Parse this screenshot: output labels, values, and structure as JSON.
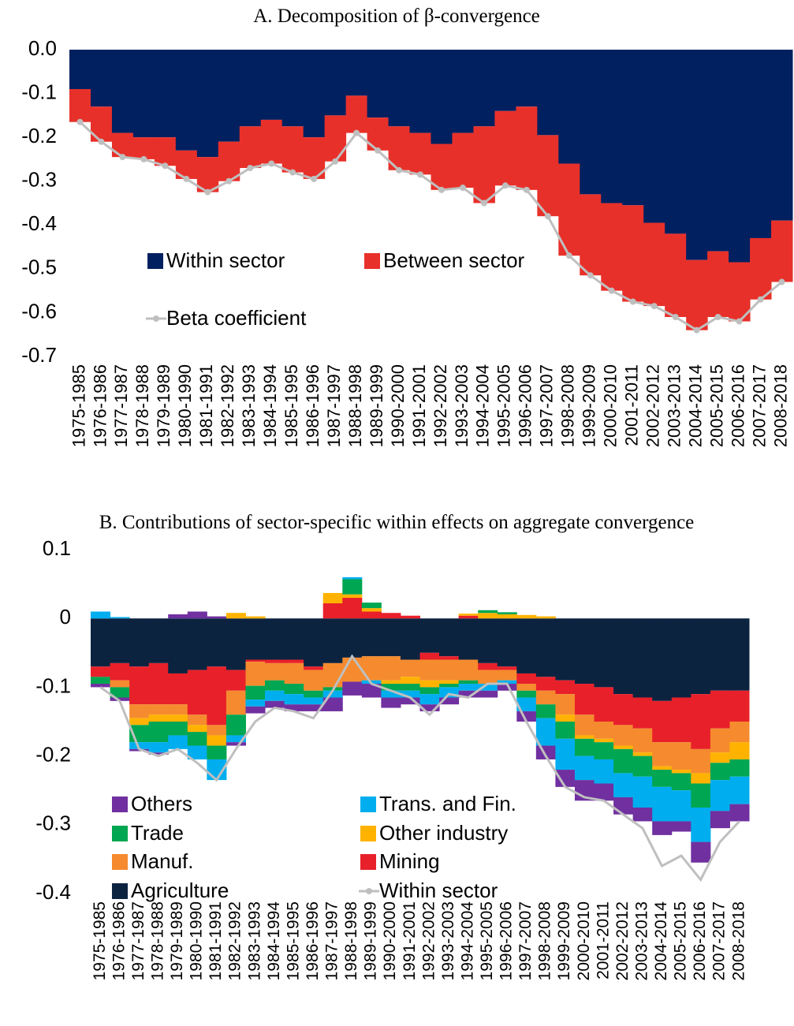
{
  "chart_data": [
    {
      "type": "bar",
      "stacked": true,
      "title": "A. Decomposition of β-convergence",
      "categories": [
        "1975-1985",
        "1976-1986",
        "1977-1987",
        "1978-1988",
        "1979-1989",
        "1980-1990",
        "1981-1991",
        "1982-1992",
        "1983-1993",
        "1984-1994",
        "1985-1995",
        "1986-1996",
        "1987-1997",
        "1988-1998",
        "1989-1999",
        "1990-2000",
        "1991-2001",
        "1992-2002",
        "1993-2003",
        "1994-2004",
        "1995-2005",
        "1996-2006",
        "1997-2007",
        "1998-2008",
        "1999-2009",
        "2000-2010",
        "2001-2011",
        "2002-2012",
        "2003-2013",
        "2004-2014",
        "2005-2015",
        "2006-2016",
        "2007-2017",
        "2008-2018"
      ],
      "series": [
        {
          "name": "Within sector",
          "color": "#002060",
          "values": [
            -0.09,
            -0.13,
            -0.19,
            -0.2,
            -0.2,
            -0.23,
            -0.245,
            -0.21,
            -0.175,
            -0.16,
            -0.175,
            -0.2,
            -0.15,
            -0.105,
            -0.155,
            -0.175,
            -0.19,
            -0.215,
            -0.19,
            -0.175,
            -0.14,
            -0.13,
            -0.195,
            -0.26,
            -0.33,
            -0.35,
            -0.355,
            -0.395,
            -0.42,
            -0.48,
            -0.46,
            -0.485,
            -0.43,
            -0.39
          ]
        },
        {
          "name": "Between sector",
          "color": "#e8302a",
          "values": [
            -0.075,
            -0.08,
            -0.055,
            -0.05,
            -0.065,
            -0.065,
            -0.08,
            -0.09,
            -0.095,
            -0.1,
            -0.105,
            -0.095,
            -0.105,
            -0.085,
            -0.075,
            -0.1,
            -0.095,
            -0.105,
            -0.125,
            -0.175,
            -0.17,
            -0.19,
            -0.185,
            -0.21,
            -0.185,
            -0.2,
            -0.22,
            -0.19,
            -0.19,
            -0.16,
            -0.15,
            -0.135,
            -0.14,
            -0.14
          ]
        },
        {
          "name": "Beta coefficient",
          "type": "line",
          "color": "#bfbfbf",
          "values": [
            -0.165,
            -0.21,
            -0.245,
            -0.25,
            -0.265,
            -0.295,
            -0.325,
            -0.3,
            -0.27,
            -0.26,
            -0.28,
            -0.295,
            -0.255,
            -0.19,
            -0.23,
            -0.275,
            -0.285,
            -0.32,
            -0.315,
            -0.35,
            -0.31,
            -0.32,
            -0.38,
            -0.47,
            -0.515,
            -0.55,
            -0.575,
            -0.585,
            -0.61,
            -0.64,
            -0.61,
            -0.62,
            -0.57,
            -0.53
          ]
        }
      ],
      "ylim": [
        -0.7,
        0
      ],
      "yticks": [
        {
          "value": 0,
          "label": "0.0"
        },
        -0.1,
        -0.2,
        -0.3,
        -0.4,
        -0.5,
        -0.6,
        -0.7
      ]
    },
    {
      "type": "bar",
      "stacked": true,
      "title": "B. Contributions of sector-specific within effects on aggregate convergence",
      "categories": [
        "1975-1985",
        "1976-1986",
        "1977-1987",
        "1978-1988",
        "1979-1989",
        "1980-1990",
        "1981-1991",
        "1982-1992",
        "1983-1993",
        "1984-1994",
        "1985-1995",
        "1986-1996",
        "1987-1997",
        "1988-1998",
        "1989-1999",
        "1990-2000",
        "1991-2001",
        "1992-2002",
        "1993-2003",
        "1994-2004",
        "1995-2005",
        "1996-2006",
        "1997-2007",
        "1998-2008",
        "1999-2009",
        "2000-2010",
        "2001-2011",
        "2002-2012",
        "2003-2013",
        "2004-2014",
        "2005-2015",
        "2006-2016",
        "2007-2017",
        "2008-2018"
      ],
      "series": [
        {
          "name": "Agriculture",
          "color": "#0c2340",
          "values": [
            -0.07,
            -0.065,
            -0.07,
            -0.065,
            -0.08,
            -0.075,
            -0.07,
            -0.075,
            -0.06,
            -0.06,
            -0.06,
            -0.07,
            -0.065,
            -0.057,
            -0.055,
            -0.055,
            -0.06,
            -0.05,
            -0.055,
            -0.06,
            -0.065,
            -0.07,
            -0.08,
            -0.085,
            -0.09,
            -0.095,
            -0.1,
            -0.11,
            -0.115,
            -0.12,
            -0.115,
            -0.11,
            -0.105,
            -0.105
          ]
        },
        {
          "name": "Mining",
          "color": "#e8202a",
          "values": [
            -0.015,
            -0.025,
            -0.055,
            -0.06,
            -0.045,
            -0.065,
            -0.085,
            -0.03,
            -0.003,
            -0.005,
            -0.005,
            -0.005,
            0.022,
            0.03,
            0.01,
            0.008,
            0.004,
            -0.01,
            -0.005,
            0.004,
            -0.01,
            -0.005,
            -0.015,
            -0.02,
            -0.02,
            -0.045,
            -0.05,
            -0.045,
            -0.045,
            -0.06,
            -0.065,
            -0.08,
            -0.055,
            -0.045
          ]
        },
        {
          "name": "Manuf.",
          "color": "#f58b2e",
          "values": [
            0,
            -0.01,
            -0.02,
            -0.015,
            -0.015,
            -0.015,
            -0.015,
            -0.035,
            -0.035,
            -0.025,
            -0.03,
            -0.03,
            -0.035,
            -0.035,
            -0.035,
            -0.035,
            -0.025,
            -0.03,
            -0.03,
            -0.03,
            -0.02,
            -0.015,
            -0.01,
            -0.02,
            -0.03,
            -0.03,
            -0.025,
            -0.03,
            -0.035,
            -0.035,
            -0.04,
            -0.035,
            -0.035,
            -0.03
          ]
        },
        {
          "name": "Other industry",
          "color": "#ffb300",
          "values": [
            0,
            0,
            -0.01,
            -0.01,
            -0.01,
            -0.01,
            -0.015,
            0.008,
            0.003,
            0,
            0,
            0,
            0.015,
            0.005,
            0.005,
            -0.005,
            -0.01,
            -0.01,
            -0.005,
            0.003,
            0.008,
            0.006,
            0.005,
            0.003,
            -0.01,
            -0.005,
            -0.005,
            -0.005,
            -0.005,
            -0.005,
            -0.005,
            -0.015,
            -0.015,
            -0.025
          ]
        },
        {
          "name": "Trade",
          "color": "#00a651",
          "values": [
            -0.01,
            -0.015,
            -0.025,
            -0.03,
            -0.02,
            -0.02,
            -0.02,
            -0.03,
            -0.02,
            -0.015,
            -0.015,
            -0.01,
            -0.005,
            0.022,
            0.008,
            -0.01,
            -0.01,
            -0.01,
            -0.005,
            -0.005,
            0.004,
            0.003,
            -0.01,
            -0.02,
            -0.025,
            -0.025,
            -0.025,
            -0.035,
            -0.03,
            -0.025,
            -0.025,
            -0.035,
            -0.025,
            -0.025
          ]
        },
        {
          "name": "Trans. and Fin.",
          "color": "#00aeef",
          "values": [
            0.01,
            0.002,
            -0.01,
            -0.015,
            -0.02,
            -0.02,
            -0.03,
            -0.01,
            -0.01,
            -0.015,
            -0.015,
            -0.01,
            -0.01,
            0.003,
            -0.005,
            -0.01,
            -0.01,
            -0.015,
            -0.015,
            -0.01,
            -0.01,
            -0.005,
            -0.02,
            -0.04,
            -0.045,
            -0.035,
            -0.035,
            -0.035,
            -0.045,
            -0.05,
            -0.045,
            -0.05,
            -0.045,
            -0.04
          ]
        },
        {
          "name": "Others",
          "color": "#7030a0",
          "values": [
            -0.005,
            -0.005,
            -0.003,
            -0.003,
            0.006,
            0.01,
            0.003,
            -0.005,
            -0.01,
            -0.01,
            -0.01,
            -0.01,
            -0.02,
            -0.02,
            -0.02,
            -0.015,
            -0.01,
            -0.01,
            -0.01,
            -0.01,
            -0.01,
            -0.01,
            -0.015,
            -0.02,
            -0.025,
            -0.03,
            -0.025,
            -0.025,
            -0.02,
            -0.02,
            -0.015,
            -0.03,
            -0.025,
            -0.025
          ]
        },
        {
          "name": "Within sector",
          "type": "line",
          "color": "#bfbfbf",
          "values": [
            -0.1,
            -0.12,
            -0.19,
            -0.2,
            -0.19,
            -0.21,
            -0.235,
            -0.19,
            -0.15,
            -0.13,
            -0.135,
            -0.145,
            -0.105,
            -0.055,
            -0.095,
            -0.105,
            -0.115,
            -0.14,
            -0.11,
            -0.115,
            -0.095,
            -0.095,
            -0.15,
            -0.2,
            -0.245,
            -0.26,
            -0.265,
            -0.285,
            -0.305,
            -0.36,
            -0.345,
            -0.38,
            -0.325,
            -0.295
          ]
        }
      ],
      "ylim": [
        -0.4,
        0.1
      ],
      "yticks": [
        0.1,
        0,
        -0.1,
        -0.2,
        -0.3,
        -0.4
      ]
    }
  ]
}
